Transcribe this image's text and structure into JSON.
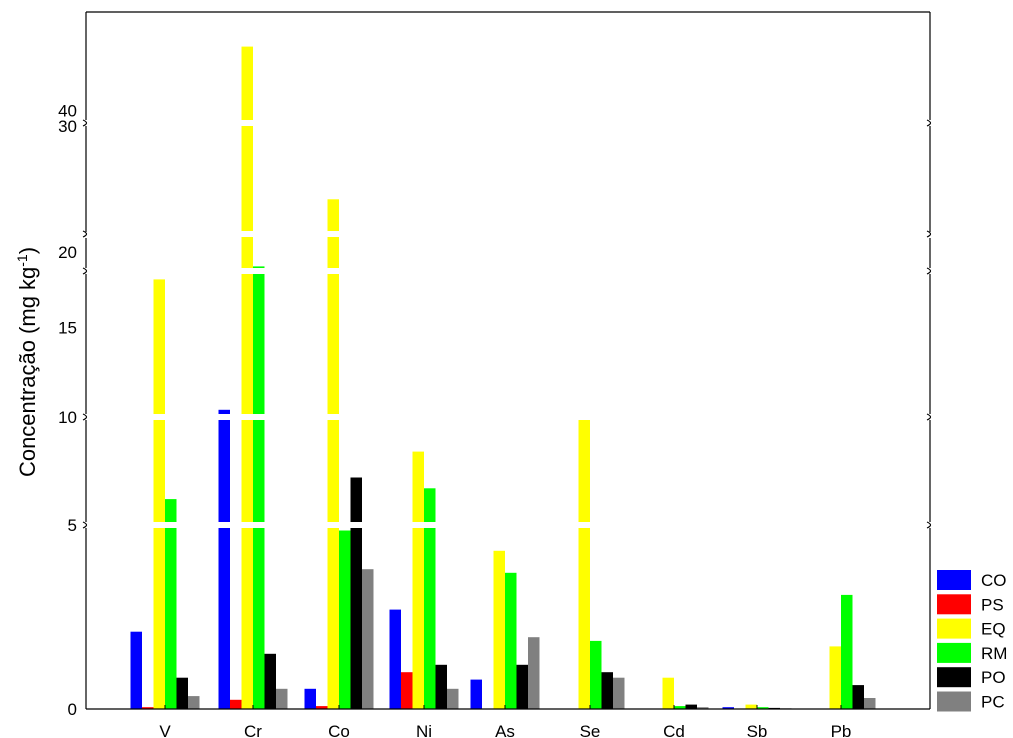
{
  "chart_data": {
    "type": "bar",
    "ylabel": "Concentração (mg kg",
    "ylabel_sup": "-1",
    "ylabel_close": ")",
    "categories": [
      "V",
      "Cr",
      "Co",
      "Ni",
      "As",
      "Se",
      "Cd",
      "Sb",
      "Pb"
    ],
    "series": [
      {
        "name": "CO",
        "color": "#0000FF",
        "values": [
          2.1,
          10.4,
          0.55,
          2.7,
          0.8,
          0,
          0,
          0.05,
          0
        ]
      },
      {
        "name": "PS",
        "color": "#FF0000",
        "values": [
          0.05,
          0.25,
          0.08,
          1.0,
          0,
          0,
          0,
          0,
          0
        ]
      },
      {
        "name": "EQ",
        "color": "#FFFF00",
        "values": [
          17.7,
          46,
          24,
          8.4,
          4.3,
          9.9,
          0.85,
          0.12,
          1.7
        ]
      },
      {
        "name": "RM",
        "color": "#00FF00",
        "values": [
          6.2,
          19.1,
          4.85,
          6.7,
          3.7,
          1.85,
          0.08,
          0.05,
          3.1
        ]
      },
      {
        "name": "PO",
        "color": "#000000",
        "values": [
          0.85,
          1.5,
          7.2,
          1.2,
          1.2,
          1.0,
          0.12,
          0.03,
          0.65
        ]
      },
      {
        "name": "PC",
        "color": "#808080",
        "values": [
          0.35,
          0.55,
          3.8,
          0.55,
          1.95,
          0.85,
          0.05,
          0.02,
          0.3
        ]
      }
    ],
    "y_axis_segments": [
      {
        "range": [
          0,
          5
        ],
        "ticks": [
          "0",
          "5"
        ]
      },
      {
        "range": [
          5,
          10
        ],
        "ticks": [
          "5",
          "10"
        ]
      },
      {
        "range": [
          10,
          18
        ],
        "ticks": [
          "10",
          "15"
        ]
      },
      {
        "range": [
          19,
          21
        ],
        "ticks": [
          "20"
        ]
      },
      {
        "range": [
          21,
          30
        ],
        "ticks": [
          "30"
        ]
      },
      {
        "range": [
          39,
          47
        ],
        "ticks": [
          "40"
        ]
      }
    ],
    "grid": false,
    "legend_position": "bottom-right"
  }
}
